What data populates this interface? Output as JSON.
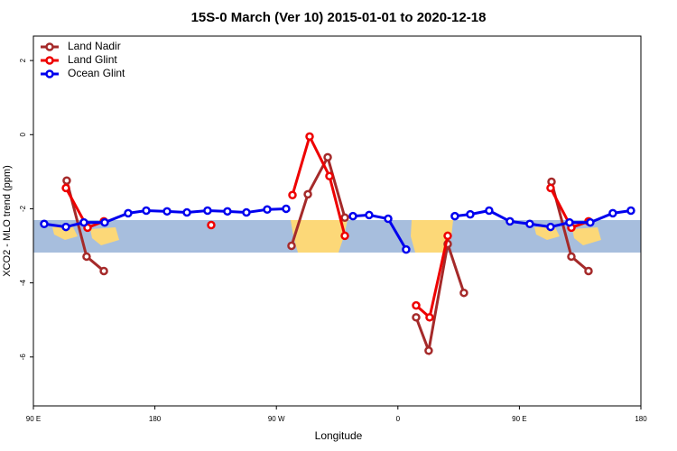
{
  "chart_data": {
    "type": "line",
    "title": "15S-0 March (Ver 10)   2015-01-01 to 2020-12-18",
    "x_label": "Longitude",
    "y_label": "XCO2 - MLO trend (ppm)",
    "xlim": [
      90,
      540
    ],
    "xticks": [
      {
        "value": 90,
        "label": "90 E"
      },
      {
        "value": 180,
        "label": "180"
      },
      {
        "value": 270,
        "label": "90 W"
      },
      {
        "value": 360,
        "label": "0"
      },
      {
        "value": 450,
        "label": "90 E"
      },
      {
        "value": 540,
        "label": "180"
      }
    ],
    "ylim": [
      -7.32,
      2.66
    ],
    "yticks": [
      -6,
      -4,
      -2,
      0,
      2
    ],
    "legend": "top-left",
    "series": [
      {
        "name": "Land Nadir",
        "color": "#a52a2a",
        "x": [
          114.7,
          129.4,
          142.2,
          null,
          281.2,
          293.3,
          308.0,
          320.7,
          null,
          373.5,
          382.8,
          396.9,
          408.9,
          null,
          473.8,
          488.5,
          501.2
        ],
        "values": [
          -1.24,
          -3.29,
          -3.68,
          null,
          -3.0,
          -1.61,
          -0.61,
          -2.24,
          null,
          -4.93,
          -5.83,
          -2.95,
          -4.27,
          null,
          -1.27,
          -3.29,
          -3.68
        ]
      },
      {
        "name": "Land Glint",
        "color": "#ee0000",
        "x": [
          114.1,
          130.1,
          142.2,
          null,
          221.7,
          null,
          281.9,
          294.6,
          309.3,
          320.7,
          null,
          373.5,
          383.5,
          396.9,
          null,
          473.1,
          488.5,
          501.2
        ],
        "values": [
          -1.44,
          -2.51,
          -2.34,
          null,
          -2.44,
          null,
          -1.63,
          -0.05,
          -1.12,
          -2.73,
          null,
          -4.61,
          -4.93,
          -2.73,
          null,
          -1.44,
          -2.51,
          -2.34
        ]
      },
      {
        "name": "Ocean Glint",
        "color": "#0000ee",
        "x": [
          98.0,
          114.1,
          127.4,
          142.8,
          160.2,
          173.6,
          189.0,
          203.7,
          219.0,
          233.7,
          247.8,
          263.2,
          277.2,
          null,
          326.7,
          338.7,
          352.8,
          366.1,
          null,
          402.2,
          413.6,
          427.6,
          443.0,
          457.7,
          473.1,
          487.1,
          502.5,
          519.2,
          532.6
        ],
        "values": [
          -2.41,
          -2.49,
          -2.37,
          -2.37,
          -2.12,
          -2.05,
          -2.07,
          -2.1,
          -2.05,
          -2.07,
          -2.1,
          -2.02,
          -2.0,
          null,
          -2.2,
          -2.17,
          -2.27,
          -3.1,
          null,
          -2.2,
          -2.15,
          -2.05,
          -2.34,
          -2.41,
          -2.49,
          -2.37,
          -2.37,
          -2.12,
          -2.05
        ]
      }
    ]
  }
}
